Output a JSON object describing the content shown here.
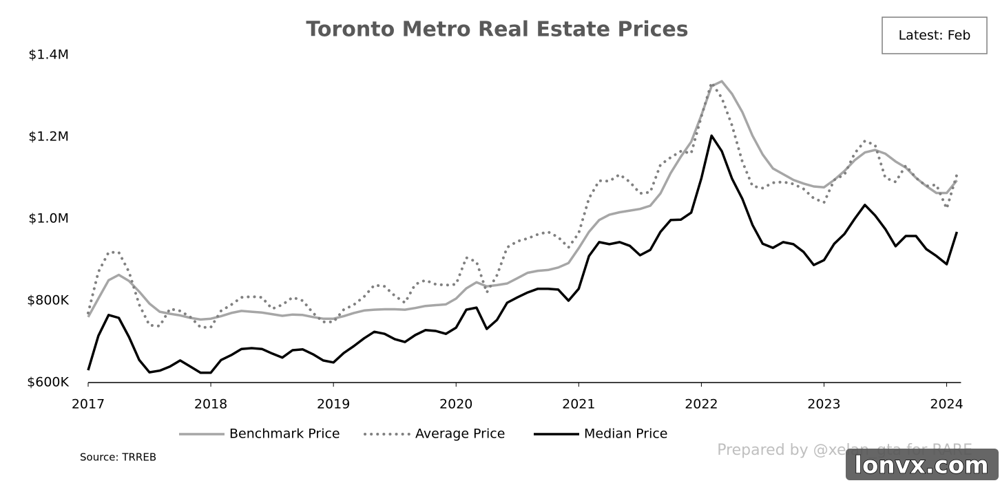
{
  "chart_data": {
    "type": "line",
    "title": "Toronto Metro Real Estate Prices",
    "annotation": "Latest: Feb",
    "source": "Source: TRREB",
    "credit": "Prepared by @xelan_gta for RARE",
    "watermark": "lonvx.com",
    "legend": "bottom",
    "categories": [
      "2017",
      null,
      null,
      null,
      null,
      null,
      null,
      null,
      null,
      null,
      null,
      null,
      "2018",
      null,
      null,
      null,
      null,
      null,
      null,
      null,
      null,
      null,
      null,
      null,
      "2019",
      null,
      null,
      null,
      null,
      null,
      null,
      null,
      null,
      null,
      null,
      null,
      "2020",
      null,
      null,
      null,
      null,
      null,
      null,
      null,
      null,
      null,
      null,
      null,
      "2021",
      null,
      null,
      null,
      null,
      null,
      null,
      null,
      null,
      null,
      null,
      null,
      "2022",
      null,
      null,
      null,
      null,
      null,
      null,
      null,
      null,
      null,
      null,
      null,
      "2023",
      null,
      null,
      null,
      null,
      null,
      null,
      null,
      null,
      null,
      null,
      null,
      "2024",
      null
    ],
    "ylim": [
      600000,
      1400000
    ],
    "yticks": [
      {
        "value": 600000,
        "label": "$600K"
      },
      {
        "value": 800000,
        "label": "$800K"
      },
      {
        "value": 1000000,
        "label": "$1.0M"
      },
      {
        "value": 1200000,
        "label": "$1.2M"
      },
      {
        "value": 1400000,
        "label": "$1.4M"
      }
    ],
    "series": [
      {
        "name": "Benchmark Price",
        "color": "#a6a6a6",
        "style": "solid",
        "values": [
          760000,
          805000,
          850000,
          863000,
          848000,
          822000,
          793000,
          773000,
          768000,
          764000,
          758000,
          754000,
          756000,
          762000,
          770000,
          775000,
          773000,
          771000,
          767000,
          763000,
          766000,
          765000,
          760000,
          756000,
          756000,
          762000,
          770000,
          776000,
          778000,
          779000,
          779000,
          778000,
          782000,
          787000,
          789000,
          791000,
          805000,
          830000,
          845000,
          835000,
          838000,
          842000,
          855000,
          868000,
          873000,
          875000,
          881000,
          892000,
          928000,
          968000,
          997000,
          1010000,
          1016000,
          1020000,
          1024000,
          1032000,
          1062000,
          1112000,
          1152000,
          1188000,
          1253000,
          1324000,
          1336000,
          1305000,
          1261000,
          1203000,
          1157000,
          1123000,
          1109000,
          1095000,
          1086000,
          1079000,
          1077000,
          1095000,
          1117000,
          1143000,
          1162000,
          1168000,
          1159000,
          1140000,
          1125000,
          1100000,
          1080000,
          1063000,
          1063000,
          1094000
        ]
      },
      {
        "name": "Average Price",
        "color": "#808080",
        "style": "dotted",
        "values": [
          770000,
          870000,
          918000,
          918000,
          870000,
          790000,
          740000,
          738000,
          780000,
          775000,
          760000,
          735000,
          735000,
          775000,
          790000,
          808000,
          810000,
          808000,
          780000,
          790000,
          808000,
          800000,
          770000,
          748000,
          748000,
          778000,
          790000,
          810000,
          838000,
          835000,
          812000,
          795000,
          840000,
          850000,
          840000,
          838000,
          840000,
          905000,
          895000,
          820000,
          862000,
          930000,
          945000,
          952000,
          962000,
          968000,
          955000,
          930000,
          965000,
          1050000,
          1093000,
          1092000,
          1108000,
          1090000,
          1062000,
          1065000,
          1132000,
          1150000,
          1165000,
          1160000,
          1250000,
          1333000,
          1295000,
          1228000,
          1140000,
          1080000,
          1075000,
          1088000,
          1090000,
          1085000,
          1073000,
          1050000,
          1040000,
          1095000,
          1108000,
          1160000,
          1190000,
          1180000,
          1100000,
          1090000,
          1130000,
          1100000,
          1080000,
          1083000,
          1025000,
          1108000
        ]
      },
      {
        "name": "Median Price",
        "color": "#000000",
        "style": "solid",
        "values": [
          630000,
          714000,
          765000,
          758000,
          711000,
          655000,
          625000,
          629000,
          639000,
          654000,
          639000,
          624000,
          624000,
          655000,
          667000,
          682000,
          684000,
          682000,
          671000,
          661000,
          679000,
          681000,
          669000,
          654000,
          649000,
          672000,
          689000,
          708000,
          724000,
          719000,
          706000,
          699000,
          716000,
          728000,
          726000,
          719000,
          734000,
          778000,
          783000,
          731000,
          753000,
          795000,
          808000,
          820000,
          829000,
          829000,
          827000,
          800000,
          829000,
          909000,
          943000,
          938000,
          943000,
          934000,
          911000,
          924000,
          968000,
          997000,
          998000,
          1015000,
          1099000,
          1203000,
          1165000,
          1098000,
          1049000,
          985000,
          939000,
          929000,
          943000,
          938000,
          919000,
          887000,
          899000,
          939000,
          963000,
          1000000,
          1034000,
          1008000,
          975000,
          933000,
          958000,
          958000,
          926000,
          909000,
          889000,
          968000
        ]
      }
    ]
  }
}
